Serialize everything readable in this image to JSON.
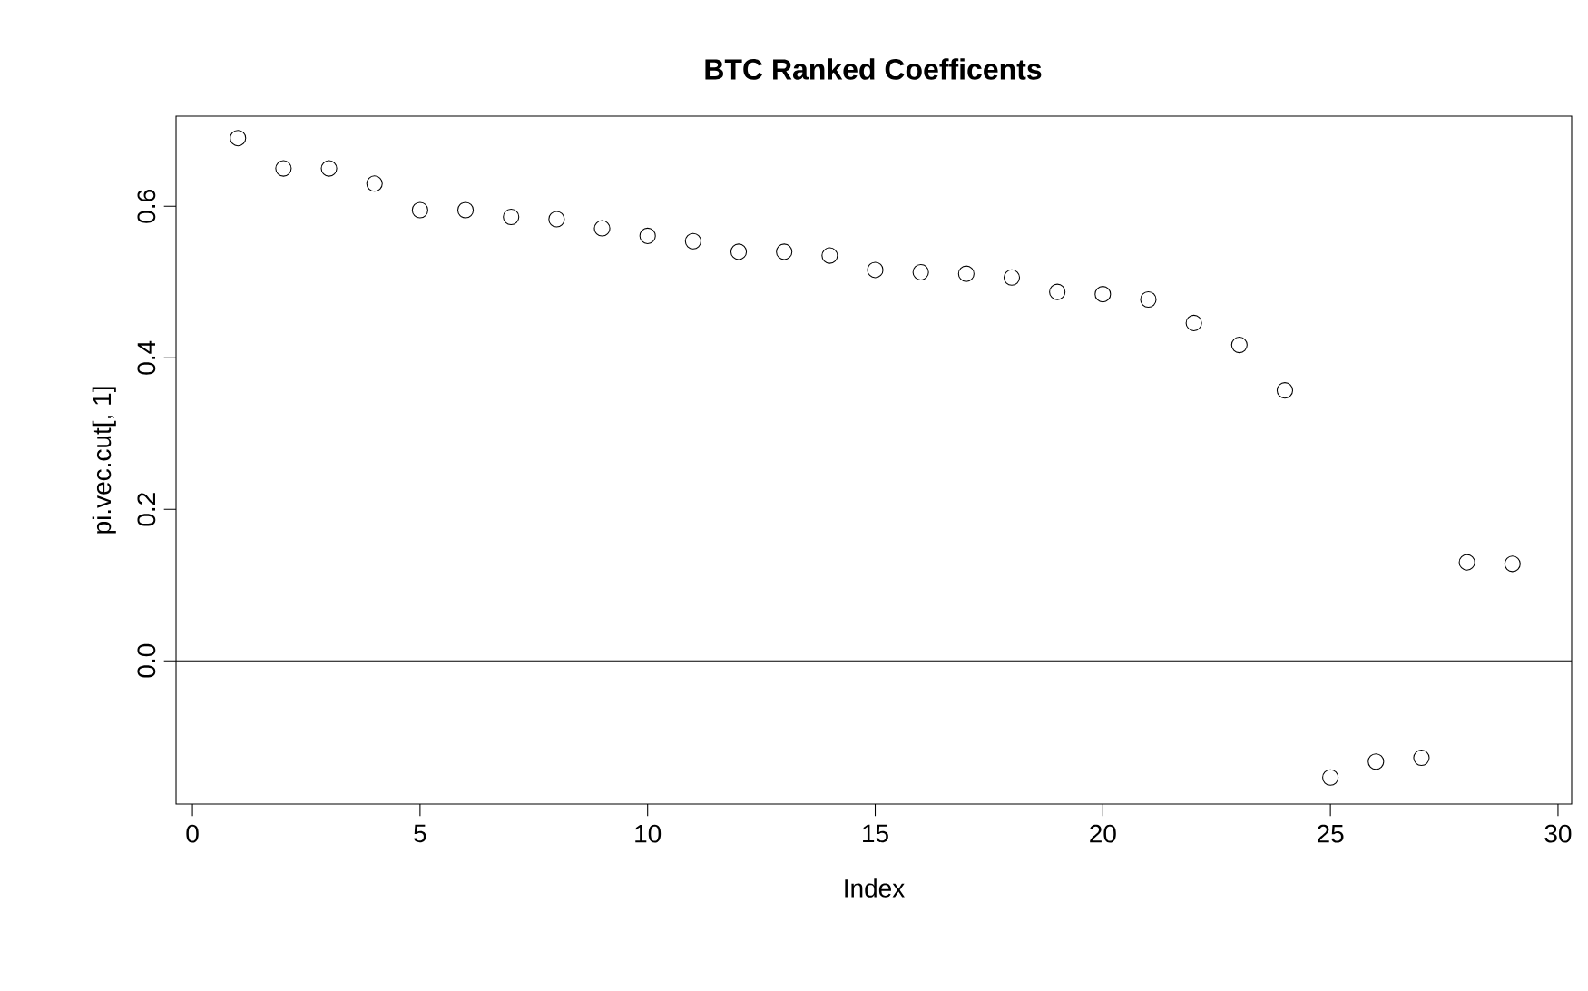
{
  "chart_data": {
    "type": "scatter",
    "title": "BTC Ranked Coefficents",
    "xlabel": "Index",
    "ylabel": "pi.vec.cut[, 1]",
    "x": [
      1,
      2,
      3,
      4,
      5,
      6,
      7,
      8,
      9,
      10,
      11,
      12,
      13,
      14,
      15,
      16,
      17,
      18,
      19,
      20,
      21,
      22,
      23,
      24,
      25,
      26,
      27,
      28,
      29
    ],
    "values": [
      0.69,
      0.65,
      0.65,
      0.63,
      0.595,
      0.595,
      0.586,
      0.583,
      0.571,
      0.561,
      0.554,
      0.54,
      0.54,
      0.535,
      0.516,
      0.513,
      0.511,
      0.506,
      0.487,
      0.484,
      0.477,
      0.446,
      0.417,
      0.357,
      -0.154,
      -0.133,
      -0.128,
      0.13,
      0.128
    ],
    "color": "#000000",
    "marker": "circle",
    "xlim": [
      -0.36,
      30.3
    ],
    "ylim": [
      -0.189,
      0.719
    ],
    "xticks": [
      0,
      5,
      10,
      15,
      20,
      25,
      30
    ],
    "yticks": [
      {
        "value": 0,
        "label": "0.0"
      },
      {
        "value": 0.2,
        "label": "0.2"
      },
      {
        "value": 0.4,
        "label": "0.4"
      },
      {
        "value": 0.6,
        "label": "0.6"
      }
    ],
    "ref_lines": [
      {
        "axis": "y",
        "value": 0,
        "color": "#000000"
      }
    ],
    "grid": false
  }
}
